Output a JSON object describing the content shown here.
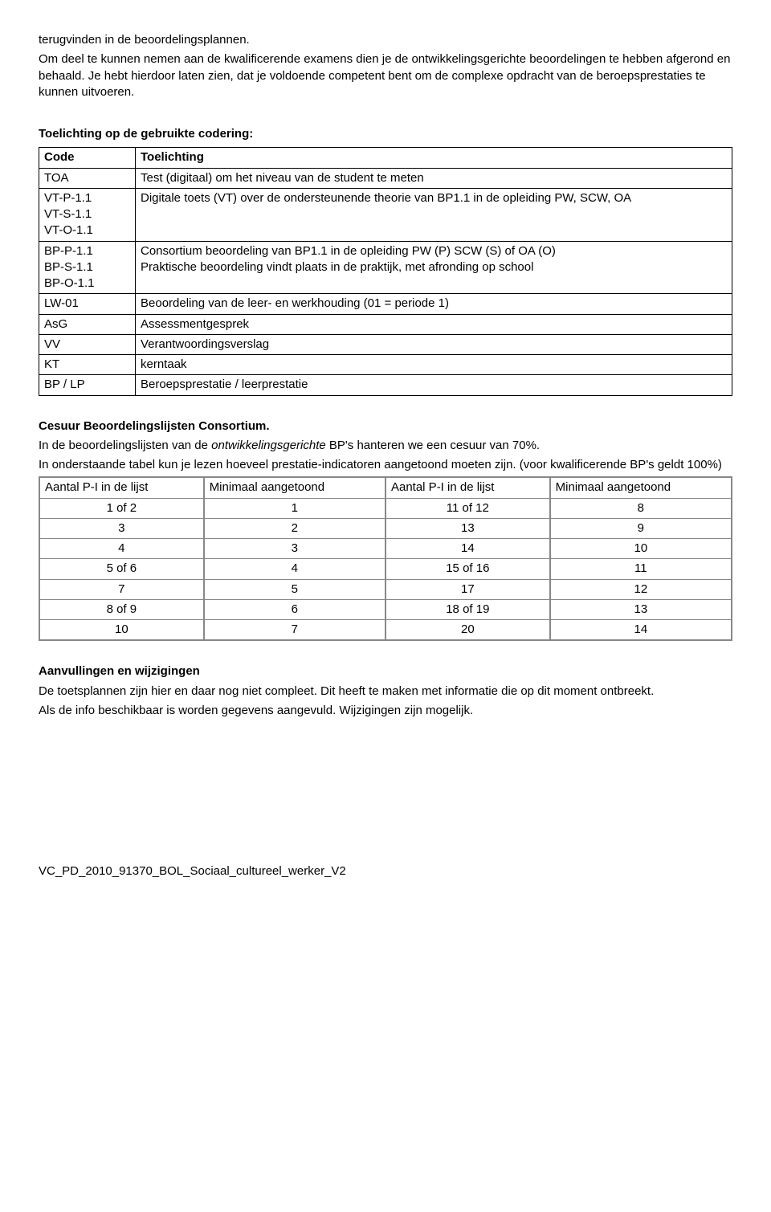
{
  "intro": {
    "p1": "terugvinden in de beoordelingsplannen.",
    "p2": "Om deel te kunnen nemen aan de kwalificerende examens dien je de ontwikkelingsgerichte beoordelingen te hebben afgerond en behaald. Je hebt hierdoor laten zien, dat je voldoende competent bent om de complexe opdracht van de beroepsprestaties te kunnen uitvoeren."
  },
  "coding": {
    "heading": "Toelichting op de gebruikte codering:",
    "col_code": "Code",
    "col_toelichting": "Toelichting",
    "rows": [
      {
        "code": "TOA",
        "text": "Test (digitaal) om het niveau van de student te meten"
      },
      {
        "code": "VT-P-1.1\nVT-S-1.1\nVT-O-1.1",
        "text": "Digitale toets (VT) over de ondersteunende theorie van BP1.1 in de opleiding PW, SCW, OA"
      },
      {
        "code": "BP-P-1.1\nBP-S-1.1\nBP-O-1.1",
        "text": "Consortium beoordeling van BP1.1 in de opleiding  PW (P)  SCW (S) of  OA (O)\nPraktische beoordeling vindt plaats in de praktijk, met afronding op school"
      },
      {
        "code": "LW-01",
        "text": "Beoordeling van de leer- en werkhouding  (01 = periode 1)"
      },
      {
        "code": "AsG",
        "text": "Assessmentgesprek"
      },
      {
        "code": "VV",
        "text": "Verantwoordingsverslag"
      },
      {
        "code": "KT",
        "text": "kerntaak"
      },
      {
        "code": "BP / LP",
        "text": "Beroepsprestatie / leerprestatie"
      }
    ]
  },
  "cesuur": {
    "heading": "Cesuur  Beoordelingslijsten Consortium.",
    "p1": "In de beoordelingslijsten van de ontwikkelingsgerichte BP's hanteren we een cesuur van 70%.",
    "p1_italic_word": "ontwikkelingsgerichte",
    "p2": "In onderstaande tabel kun je lezen hoeveel prestatie-indicatoren aangetoond moeten zijn. (voor kwalificerende BP's geldt 100%)",
    "headers": [
      "Aantal P-I in de lijst",
      "Minimaal  aangetoond",
      "Aantal P-I in de lijst",
      "Minimaal aangetoond"
    ],
    "rows": [
      [
        "1 of 2",
        "1",
        "11 of 12",
        "8"
      ],
      [
        "3",
        "2",
        "13",
        "9"
      ],
      [
        "4",
        "3",
        "14",
        "10"
      ],
      [
        "5 of 6",
        "4",
        "15 of 16",
        "11"
      ],
      [
        "7",
        "5",
        "17",
        "12"
      ],
      [
        "8 of 9",
        "6",
        "18 of 19",
        "13"
      ],
      [
        "10",
        "7",
        "20",
        "14"
      ]
    ]
  },
  "aanvullingen": {
    "heading": "Aanvullingen en wijzigingen",
    "p1": "De toetsplannen zijn hier en daar nog niet compleet. Dit heeft te maken met informatie die op dit moment ontbreekt.",
    "p2": "Als de info beschikbaar is worden gegevens aangevuld. Wijzigingen zijn mogelijk."
  },
  "footer": "VC_PD_2010_91370_BOL_Sociaal_cultureel_werker_V2"
}
